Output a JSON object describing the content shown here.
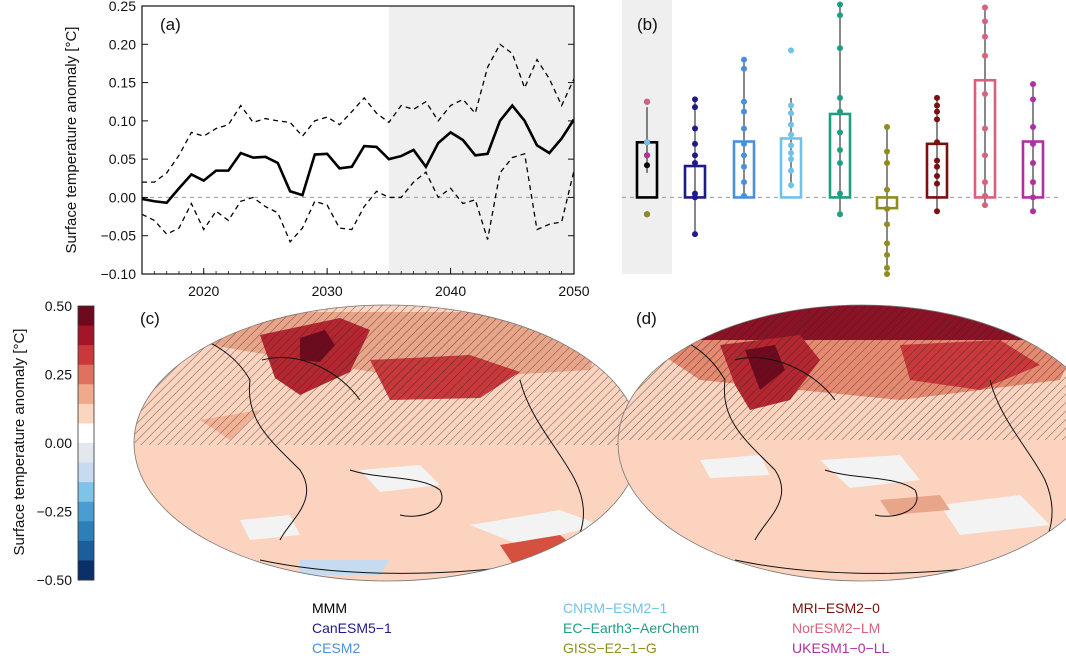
{
  "chart_data": [
    {
      "panel": "(a)",
      "type": "line",
      "ylabel": "Surface temperature anomaly [°C]",
      "xlim": [
        2015,
        2050
      ],
      "ylim": [
        -0.1,
        0.25
      ],
      "xticks": [
        2020,
        2030,
        2040,
        2050
      ],
      "xtick_labels": [
        "2020",
        "2030",
        "2040",
        "2050"
      ],
      "yticks": [
        -0.1,
        -0.05,
        0.0,
        0.05,
        0.1,
        0.15,
        0.2,
        0.25
      ],
      "ytick_labels": [
        "−0.10",
        "−0.05",
        "0.00",
        "0.05",
        "0.10",
        "0.15",
        "0.20",
        "0.25"
      ],
      "shaded_x_range": [
        2035,
        2050
      ],
      "x": [
        2015,
        2016,
        2017,
        2018,
        2019,
        2020,
        2021,
        2022,
        2023,
        2024,
        2025,
        2026,
        2027,
        2028,
        2029,
        2030,
        2031,
        2032,
        2033,
        2034,
        2035,
        2036,
        2037,
        2038,
        2039,
        2040,
        2041,
        2042,
        2043,
        2044,
        2045,
        2046,
        2047,
        2048,
        2049,
        2050
      ],
      "series": [
        {
          "name": "mean",
          "style": "solid",
          "values": [
            -0.002,
            -0.005,
            -0.007,
            0.012,
            0.03,
            0.022,
            0.035,
            0.035,
            0.058,
            0.052,
            0.053,
            0.045,
            0.008,
            0.003,
            0.056,
            0.057,
            0.038,
            0.04,
            0.067,
            0.066,
            0.05,
            0.054,
            0.062,
            0.04,
            0.071,
            0.085,
            0.075,
            0.055,
            0.057,
            0.1,
            0.12,
            0.1,
            0.068,
            0.058,
            0.077,
            0.102
          ]
        },
        {
          "name": "upper",
          "style": "dashed",
          "values": [
            0.02,
            0.02,
            0.032,
            0.055,
            0.085,
            0.08,
            0.09,
            0.095,
            0.12,
            0.098,
            0.103,
            0.1,
            0.098,
            0.08,
            0.1,
            0.105,
            0.095,
            0.112,
            0.13,
            0.11,
            0.098,
            0.12,
            0.115,
            0.125,
            0.1,
            0.12,
            0.128,
            0.11,
            0.17,
            0.2,
            0.188,
            0.143,
            0.18,
            0.155,
            0.12,
            0.155
          ]
        },
        {
          "name": "lower",
          "style": "dashed",
          "values": [
            -0.022,
            -0.03,
            -0.048,
            -0.04,
            -0.008,
            -0.042,
            -0.018,
            -0.03,
            -0.005,
            0.0,
            -0.012,
            -0.02,
            -0.058,
            -0.04,
            -0.005,
            -0.01,
            -0.04,
            -0.042,
            -0.012,
            0.008,
            0.0,
            0.0,
            0.02,
            0.033,
            0.0,
            0.012,
            -0.008,
            -0.003,
            -0.055,
            0.032,
            0.052,
            0.057,
            -0.042,
            -0.035,
            -0.032,
            0.035
          ]
        }
      ]
    },
    {
      "panel": "(b)",
      "type": "bar",
      "ylim": [
        -0.1,
        0.25
      ],
      "shaded_category": "MMM",
      "categories": [
        "MMM",
        "CanESM5−1",
        "CESM2",
        "CNRM−ESM2−1",
        "EC−Earth3−AerChem",
        "GISS−E2−1−G",
        "MRI−ESM2−0",
        "NorESM2−LM",
        "UKESM1−0−LL"
      ],
      "colors": [
        "#000000",
        "#1f1a8a",
        "#4a90d9",
        "#6ec3ea",
        "#1f9e82",
        "#8f8c1e",
        "#7a1010",
        "#d6627c",
        "#b0309f"
      ],
      "values": [
        0.072,
        0.041,
        0.073,
        0.077,
        0.109,
        -0.014,
        0.07,
        0.153,
        0.073
      ],
      "whisker_low": [
        0.032,
        -0.048,
        0.0,
        0.012,
        -0.022,
        -0.095,
        -0.018,
        -0.01,
        -0.018
      ],
      "whisker_high": [
        0.118,
        0.128,
        0.18,
        0.13,
        0.25,
        0.092,
        0.128,
        0.25,
        0.148
      ],
      "members": [
        [
          0.125,
          0.072,
          0.055,
          0.042,
          -0.022
        ],
        [
          0.128,
          0.118,
          0.09,
          0.07,
          0.055,
          0.045,
          0.005,
          0.0,
          -0.048
        ],
        [
          0.18,
          0.168,
          0.125,
          0.112,
          0.09,
          0.07,
          0.055,
          0.04,
          0.02,
          0.002
        ],
        [
          0.192,
          0.12,
          0.11,
          0.095,
          0.082,
          0.068,
          0.058,
          0.05,
          0.035,
          0.016
        ],
        [
          0.252,
          0.238,
          0.195,
          0.13,
          0.112,
          0.085,
          0.062,
          0.045,
          0.005,
          -0.022
        ],
        [
          0.092,
          0.06,
          0.045,
          0.01,
          -0.015,
          -0.035,
          -0.06,
          -0.075,
          -0.092,
          -0.1
        ],
        [
          0.13,
          0.12,
          0.112,
          0.102,
          0.072,
          0.048,
          0.04,
          0.028,
          0.018,
          -0.018
        ],
        [
          0.248,
          0.23,
          0.21,
          0.185,
          0.135,
          0.09,
          0.055,
          0.02,
          0.002,
          -0.01
        ],
        [
          0.148,
          0.128,
          0.092,
          0.07,
          0.045,
          0.02,
          0.0,
          -0.018
        ]
      ]
    },
    {
      "panel": "(c) and (d)",
      "type": "heatmap",
      "description_label": "map panels",
      "colorbar": {
        "label": "Surface temperature anomaly [°C]",
        "range": [
          -0.5,
          0.5
        ],
        "tick_values": [
          0.5,
          0.25,
          0.0,
          -0.25,
          -0.5
        ],
        "tick_labels": [
          "0.50",
          "0.25",
          "0.00",
          "−0.25",
          "−0.50"
        ],
        "colors": [
          "#6f0a1e",
          "#a3162a",
          "#c9383a",
          "#e0715e",
          "#f0a98a",
          "#fad5c0",
          "#ffffff",
          "#e3e7ee",
          "#c6dbef",
          "#7ec4e8",
          "#4a9dd3",
          "#2c7fb8",
          "#1c5d9c",
          "#0b2f6b"
        ]
      }
    }
  ],
  "legend": {
    "items": [
      {
        "label": "MMM",
        "color": "#000000"
      },
      {
        "label": "CanESM5−1",
        "color": "#1f1a8a"
      },
      {
        "label": "CESM2",
        "color": "#4a90d9"
      },
      {
        "label": "CNRM−ESM2−1",
        "color": "#6ec3ea"
      },
      {
        "label": "EC−Earth3−AerChem",
        "color": "#1f9e82"
      },
      {
        "label": "GISS−E2−1−G",
        "color": "#8f8c1e"
      },
      {
        "label": "MRI−ESM2−0",
        "color": "#7a1010"
      },
      {
        "label": "NorESM2−LM",
        "color": "#d6627c"
      },
      {
        "label": "UKESM1−0−LL",
        "color": "#b0309f"
      }
    ]
  },
  "panels": {
    "a": "(a)",
    "b": "(b)",
    "c": "(c)",
    "d": "(d)"
  }
}
